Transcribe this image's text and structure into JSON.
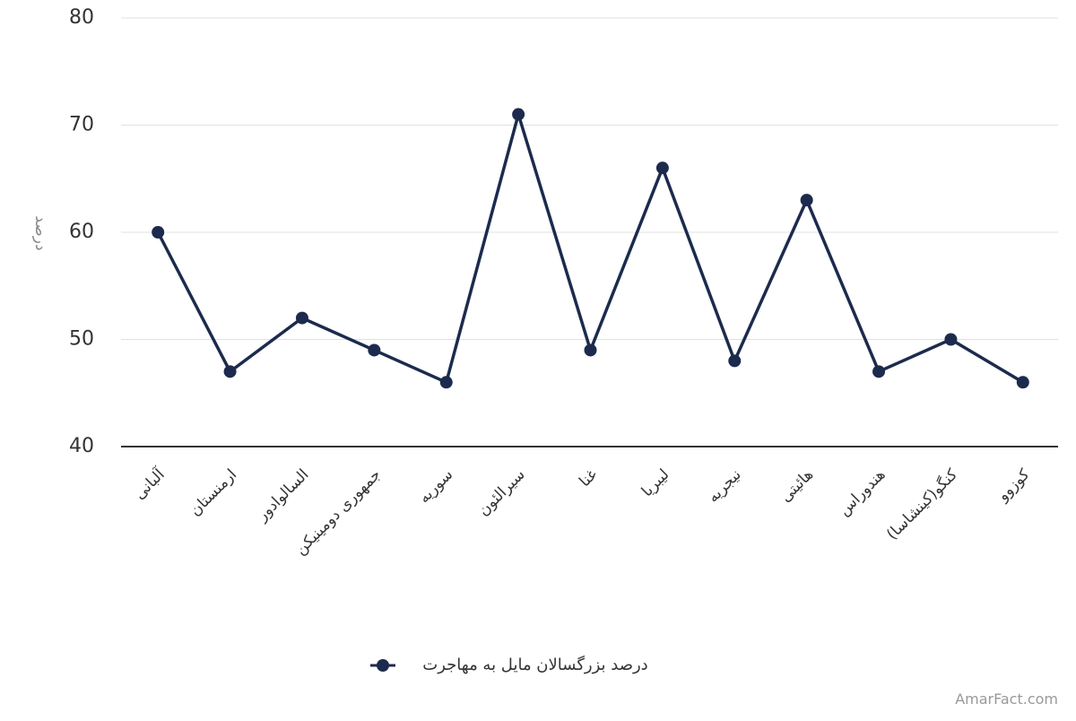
{
  "chart_data": {
    "type": "line",
    "y_label": "درصد",
    "categories": [
      "آلبانی",
      "ارمنستان",
      "السالوادور",
      "جمهوری دومینیکن",
      "سوریه",
      "سیرالئون",
      "غنا",
      "لیبریا",
      "نیجریه",
      "هائیتی",
      "هندوراس",
      "کنگو(کینشاسا)",
      "کوزوو"
    ],
    "series": [
      {
        "name": "درصد بزرگسالان مایل به مهاجرت",
        "color": "#1c2b4d",
        "values": [
          60,
          47,
          52,
          49,
          46,
          71,
          49,
          66,
          48,
          63,
          47,
          50,
          46
        ]
      }
    ],
    "ylim": [
      40,
      80
    ],
    "yticks": [
      40,
      50,
      60,
      70,
      80
    ],
    "grid": true,
    "legend": "bottom",
    "watermark": "AmarFact.com"
  }
}
